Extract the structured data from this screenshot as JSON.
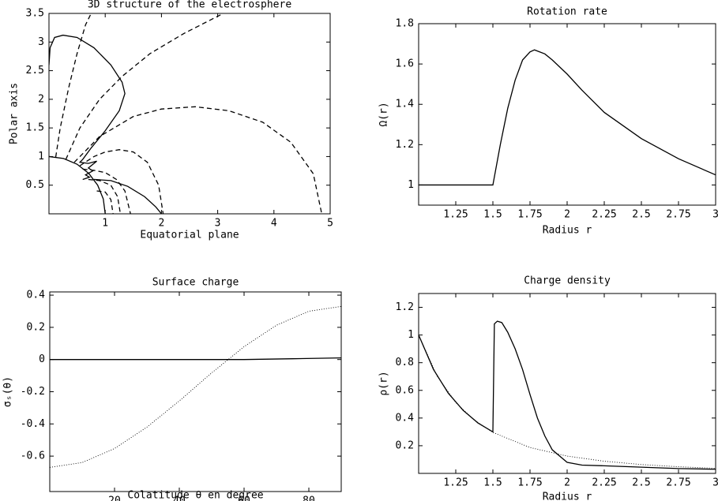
{
  "chart_data": [
    {
      "type": "line",
      "title": "3D structure of the electrosphere",
      "x_label": "Equatorial plane",
      "y_label": "Polar axis",
      "xlim": [
        0,
        5
      ],
      "ylim": [
        0,
        3.5
      ],
      "xticks": [
        1,
        2,
        3,
        4,
        5
      ],
      "yticks": [
        0.5,
        1,
        1.5,
        2,
        2.5,
        3,
        3.5
      ],
      "series": [
        {
          "color": "#000000",
          "style": "solid",
          "x": [
            1,
            0.966,
            0.866,
            0.707,
            0.5,
            0.259,
            0
          ],
          "values": [
            0,
            0.259,
            0.5,
            0.707,
            0.866,
            0.966,
            1
          ]
        },
        {
          "color": "#000000",
          "style": "solid",
          "x": [
            0,
            0.02,
            0.1,
            0.25,
            0.5,
            0.8,
            1.1,
            1.3,
            1.35,
            1.25,
            1.0,
            0.75,
            0.6,
            0.55,
            0.7,
            0.85,
            0.7,
            0.78,
            0.65,
            0.72,
            0.6
          ],
          "values": [
            2.6,
            2.9,
            3.08,
            3.12,
            3.08,
            2.9,
            2.6,
            2.3,
            2.1,
            1.8,
            1.45,
            1.15,
            0.95,
            0.9,
            0.88,
            0.92,
            0.8,
            0.75,
            0.68,
            0.64,
            0.6
          ]
        },
        {
          "color": "#000000",
          "style": "solid",
          "x": [
            0.8,
            1.1,
            1.4,
            1.7,
            1.9,
            2.0
          ],
          "values": [
            0.6,
            0.58,
            0.48,
            0.3,
            0.12,
            0
          ]
        },
        {
          "color": "#000000",
          "style": "dashed",
          "x": [
            0.12,
            0.2,
            0.35,
            0.5,
            0.65,
            0.75
          ],
          "values": [
            0.99,
            1.5,
            2.2,
            2.8,
            3.3,
            3.5
          ]
        },
        {
          "color": "#000000",
          "style": "dashed",
          "x": [
            0.3,
            0.55,
            0.9,
            1.3,
            1.8,
            2.4,
            3.1
          ],
          "values": [
            0.95,
            1.5,
            2.0,
            2.4,
            2.8,
            3.15,
            3.5
          ]
        },
        {
          "color": "#000000",
          "style": "dashed",
          "x": [
            0.45,
            0.9,
            1.5,
            2.0,
            2.6,
            3.2,
            3.8,
            4.3,
            4.7,
            4.85
          ],
          "values": [
            0.9,
            1.35,
            1.7,
            1.83,
            1.87,
            1.8,
            1.6,
            1.25,
            0.7,
            0
          ]
        },
        {
          "color": "#000000",
          "style": "dashed",
          "x": [
            0.55,
            0.8,
            1.0,
            1.25,
            1.5,
            1.75,
            1.95,
            2.03
          ],
          "values": [
            0.84,
            1.0,
            1.08,
            1.12,
            1.08,
            0.9,
            0.5,
            0
          ]
        },
        {
          "color": "#000000",
          "style": "dashed",
          "x": [
            0.6,
            0.8,
            1.0,
            1.2,
            1.35,
            1.45
          ],
          "values": [
            0.78,
            0.76,
            0.72,
            0.6,
            0.4,
            0
          ]
        },
        {
          "color": "#000000",
          "style": "dashed",
          "x": [
            0.7,
            0.9,
            1.1,
            1.22,
            1.27
          ],
          "values": [
            0.6,
            0.58,
            0.5,
            0.3,
            0
          ]
        },
        {
          "color": "#000000",
          "style": "dashed",
          "x": [
            0.85,
            1.0,
            1.1,
            1.14
          ],
          "values": [
            0.4,
            0.38,
            0.25,
            0
          ]
        }
      ]
    },
    {
      "type": "line",
      "title": "Rotation rate",
      "x_label": "Radius r",
      "y_label": "Ω(r)",
      "xlim": [
        1,
        3
      ],
      "ylim": [
        0.9,
        1.8
      ],
      "xticks": [
        1.25,
        1.5,
        1.75,
        2,
        2.25,
        2.5,
        2.75,
        3
      ],
      "yticks": [
        1,
        1.2,
        1.4,
        1.6,
        1.8
      ],
      "series": [
        {
          "color": "#000000",
          "style": "solid",
          "x": [
            1,
            1.5,
            1.55,
            1.6,
            1.65,
            1.7,
            1.75,
            1.78,
            1.85,
            1.9,
            2.0,
            2.1,
            2.25,
            2.5,
            2.75,
            3
          ],
          "values": [
            1,
            1,
            1.2,
            1.38,
            1.52,
            1.62,
            1.66,
            1.67,
            1.65,
            1.62,
            1.55,
            1.47,
            1.36,
            1.23,
            1.13,
            1.05
          ]
        }
      ]
    },
    {
      "type": "line",
      "title": "Surface charge",
      "x_label": "Colatitude θ en degree",
      "y_label": "σₛ(θ)",
      "xlim": [
        0,
        90
      ],
      "ylim": [
        -0.82,
        0.42
      ],
      "xticks": [
        20,
        40,
        60,
        80
      ],
      "yticks": [
        -0.6,
        -0.4,
        -0.2,
        0,
        0.2,
        0.4
      ],
      "series": [
        {
          "color": "#000000",
          "style": "dotted",
          "x": [
            0,
            10,
            20,
            30,
            40,
            50,
            60,
            70,
            80,
            90
          ],
          "values": [
            -0.67,
            -0.64,
            -0.553,
            -0.42,
            -0.257,
            -0.083,
            0.08,
            0.213,
            0.3,
            0.33
          ]
        },
        {
          "color": "#000000",
          "style": "solid",
          "x": [
            0,
            30,
            60,
            75,
            90
          ],
          "values": [
            0,
            0,
            0,
            0.005,
            0.01
          ]
        }
      ]
    },
    {
      "type": "line",
      "title": "Charge density",
      "x_label": "Radius r",
      "y_label": "ρ(r)",
      "xlim": [
        1,
        3
      ],
      "ylim": [
        0,
        1.3
      ],
      "xticks": [
        1.25,
        1.5,
        1.75,
        2,
        2.25,
        2.5,
        2.75,
        3
      ],
      "yticks": [
        0.2,
        0.4,
        0.6,
        0.8,
        1,
        1.2
      ],
      "series": [
        {
          "color": "#000000",
          "style": "solid",
          "x": [
            1,
            1.1,
            1.2,
            1.3,
            1.4,
            1.5,
            1.51,
            1.53,
            1.56,
            1.6,
            1.65,
            1.7,
            1.75,
            1.8,
            1.85,
            1.9,
            2,
            2.1,
            2.25,
            2.5,
            2.75,
            3
          ],
          "values": [
            1,
            0.751,
            0.579,
            0.455,
            0.364,
            0.3,
            1.08,
            1.1,
            1.09,
            1.02,
            0.9,
            0.75,
            0.57,
            0.4,
            0.27,
            0.17,
            0.08,
            0.06,
            0.055,
            0.045,
            0.035,
            0.03
          ]
        },
        {
          "color": "#000000",
          "style": "dotted",
          "x": [
            1,
            1.125,
            1.25,
            1.375,
            1.5,
            1.75,
            2,
            2.25,
            2.5,
            2.75,
            3
          ],
          "values": [
            1,
            0.702,
            0.512,
            0.385,
            0.296,
            0.187,
            0.125,
            0.088,
            0.064,
            0.048,
            0.037
          ]
        }
      ]
    }
  ]
}
